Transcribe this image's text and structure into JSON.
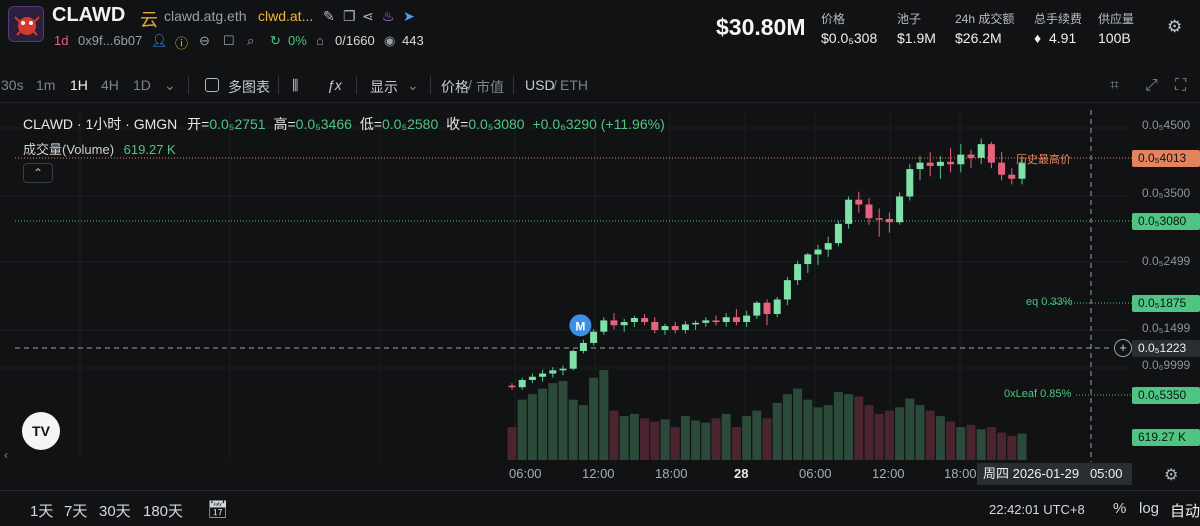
{
  "header": {
    "token_name": "CLAWD",
    "cloud_icon_label": "云",
    "domain_primary": "clawd.atg.eth",
    "domain_secondary": "clwd.at...",
    "age": "1d",
    "address": "0x9f...6b07",
    "percent_change": "0%",
    "holders": "0/1660",
    "views": "443",
    "market_cap": "$30.80M",
    "stats": [
      {
        "label": "价格",
        "value": "$0.0₅308"
      },
      {
        "label": "池子",
        "value": "$1.9M"
      },
      {
        "label": "24h 成交额",
        "value": "$26.2M"
      },
      {
        "label": "总手续费",
        "value": "4.91"
      },
      {
        "label": "供应量",
        "value": "100B"
      }
    ],
    "accent": "#4fc483",
    "down_color": "#e7627c"
  },
  "toolbar": {
    "intervals": [
      "30s",
      "1m",
      "1H",
      "4H",
      "1D"
    ],
    "active_interval": "1H",
    "multi_chart": "多图表",
    "display": "显示",
    "price_label": "价格",
    "market_cap_label": "市值",
    "usd_label": "USD",
    "eth_label": "ETH"
  },
  "legend": {
    "title": "CLAWD · 1小时 · GMGN",
    "open_label": "开=",
    "open": "0.0₅2751",
    "high_label": "高=",
    "high": "0.0₅3466",
    "low_label": "低=",
    "low": "0.0₅2580",
    "close_label": "收=",
    "close": "0.0₅3080",
    "change": "+0.0₆3290 (+11.96%)",
    "volume_label": "成交量(Volume)",
    "volume_value": "619.27 K"
  },
  "price_axis": {
    "ticks": [
      "0.0₅4500",
      "0.0₅3500",
      "0.0₅2499",
      "0.0₅1499",
      "0.0₆9999"
    ],
    "ath_label": "历史最高价",
    "ath_value": "0.0₅4013",
    "last_value": "0.0₅3080",
    "eq_label": "eq 0.33%",
    "eq_value": "0.0₅1875",
    "crosshair_value": "0.0₅1223",
    "leaf_label": "0xLeaf 0.85%",
    "leaf_value": "0.0₆5350",
    "volume_tag": "619.27 K"
  },
  "time_axis": {
    "ticks": [
      "06:00",
      "12:00",
      "18:00",
      "28",
      "06:00",
      "12:00",
      "18:00"
    ],
    "crosshair_time": "周四 2026-01-29   05:00"
  },
  "footer": {
    "ranges": [
      "1天",
      "7天",
      "30天",
      "180天"
    ],
    "clock": "22:42:01 UTC+8",
    "percent": "%",
    "log": "log",
    "auto": "自动"
  },
  "marker_label": "M",
  "chart_data": {
    "type": "candlestick",
    "interval": "1H",
    "candles": [
      [
        1.55,
        1.58,
        1.5,
        1.53
      ],
      [
        1.53,
        1.65,
        1.5,
        1.62
      ],
      [
        1.62,
        1.7,
        1.58,
        1.66
      ],
      [
        1.66,
        1.75,
        1.6,
        1.7
      ],
      [
        1.7,
        1.78,
        1.65,
        1.74
      ],
      [
        1.74,
        1.8,
        1.68,
        1.76
      ],
      [
        1.76,
        2.0,
        1.74,
        1.98
      ],
      [
        1.98,
        2.12,
        1.95,
        2.08
      ],
      [
        2.08,
        2.25,
        2.05,
        2.22
      ],
      [
        2.22,
        2.4,
        2.18,
        2.36
      ],
      [
        2.36,
        2.45,
        2.25,
        2.3
      ],
      [
        2.3,
        2.38,
        2.22,
        2.34
      ],
      [
        2.34,
        2.42,
        2.28,
        2.39
      ],
      [
        2.39,
        2.44,
        2.3,
        2.34
      ],
      [
        2.34,
        2.4,
        2.2,
        2.24
      ],
      [
        2.24,
        2.32,
        2.18,
        2.29
      ],
      [
        2.29,
        2.34,
        2.2,
        2.24
      ],
      [
        2.24,
        2.35,
        2.2,
        2.31
      ],
      [
        2.31,
        2.36,
        2.24,
        2.33
      ],
      [
        2.33,
        2.4,
        2.28,
        2.36
      ],
      [
        2.36,
        2.42,
        2.3,
        2.34
      ],
      [
        2.34,
        2.45,
        2.28,
        2.4
      ],
      [
        2.4,
        2.5,
        2.3,
        2.34
      ],
      [
        2.34,
        2.48,
        2.28,
        2.42
      ],
      [
        2.42,
        2.6,
        2.38,
        2.58
      ],
      [
        2.58,
        2.62,
        2.3,
        2.44
      ],
      [
        2.44,
        2.65,
        2.4,
        2.62
      ],
      [
        2.62,
        2.9,
        2.55,
        2.86
      ],
      [
        2.86,
        3.1,
        2.8,
        3.06
      ],
      [
        3.06,
        3.2,
        2.95,
        3.18
      ],
      [
        3.18,
        3.3,
        3.05,
        3.24
      ],
      [
        3.24,
        3.4,
        3.15,
        3.32
      ],
      [
        3.32,
        3.6,
        3.28,
        3.56
      ],
      [
        3.56,
        3.9,
        3.5,
        3.86
      ],
      [
        3.86,
        3.96,
        3.7,
        3.8
      ],
      [
        3.8,
        3.88,
        3.55,
        3.63
      ],
      [
        3.63,
        3.75,
        3.4,
        3.62
      ],
      [
        3.62,
        3.7,
        3.45,
        3.58
      ],
      [
        3.58,
        3.95,
        3.55,
        3.9
      ],
      [
        3.9,
        4.3,
        3.85,
        4.24
      ],
      [
        4.24,
        4.4,
        4.1,
        4.32
      ],
      [
        4.32,
        4.45,
        4.15,
        4.28
      ],
      [
        4.28,
        4.4,
        4.12,
        4.33
      ],
      [
        4.33,
        4.5,
        4.2,
        4.3
      ],
      [
        4.3,
        4.55,
        4.2,
        4.42
      ],
      [
        4.42,
        4.48,
        4.25,
        4.38
      ],
      [
        4.38,
        4.62,
        4.3,
        4.55
      ],
      [
        4.55,
        4.58,
        4.25,
        4.32
      ],
      [
        4.32,
        4.45,
        4.1,
        4.17
      ],
      [
        4.17,
        4.25,
        4.05,
        4.12
      ],
      [
        4.12,
        4.4,
        4.05,
        4.32
      ]
    ],
    "volumes": [
      0.3,
      0.55,
      0.6,
      0.65,
      0.7,
      0.72,
      0.55,
      0.5,
      0.75,
      0.82,
      0.45,
      0.4,
      0.42,
      0.38,
      0.35,
      0.37,
      0.3,
      0.4,
      0.36,
      0.34,
      0.38,
      0.42,
      0.3,
      0.4,
      0.45,
      0.38,
      0.52,
      0.6,
      0.65,
      0.55,
      0.48,
      0.5,
      0.62,
      0.6,
      0.58,
      0.5,
      0.42,
      0.45,
      0.48,
      0.56,
      0.5,
      0.45,
      0.4,
      0.35,
      0.3,
      0.32,
      0.28,
      0.3,
      0.25,
      0.22,
      0.24
    ],
    "ylim": [
      0.75,
      4.85
    ]
  }
}
